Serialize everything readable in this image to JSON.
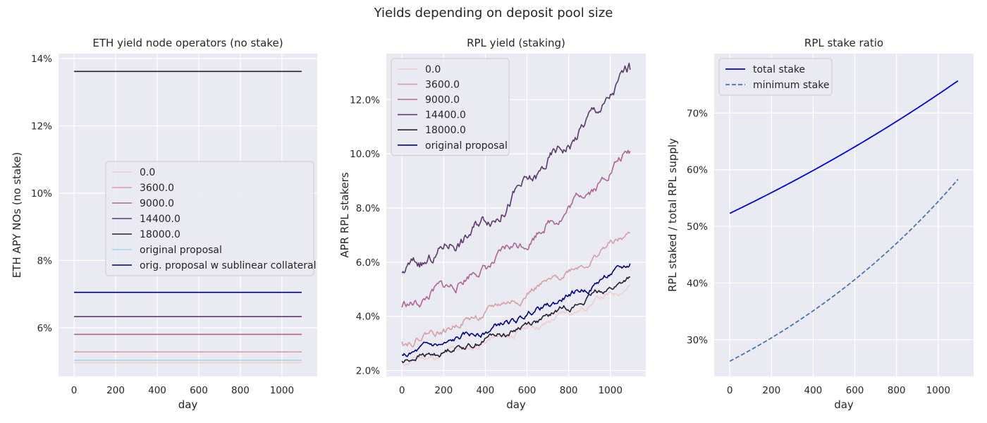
{
  "suptitle": "Yields depending on deposit pool size",
  "chart_data": [
    {
      "type": "line",
      "title": "ETH yield node operators (no stake)",
      "xlabel": "day",
      "ylabel": "ETH APY NOs (no stake)",
      "xlim": [
        -75,
        1170
      ],
      "ylim": [
        4.55,
        14.15
      ],
      "xticks": [
        0,
        200,
        400,
        600,
        800,
        1000
      ],
      "yticks": [
        6,
        8,
        10,
        12,
        14
      ],
      "ytick_labels": [
        "6%",
        "8%",
        "10%",
        "12%",
        "14%"
      ],
      "x_range": [
        0,
        1095
      ],
      "legend_position": "center-right",
      "series": [
        {
          "name": "0.0",
          "color": "#efcfcf",
          "dash": "solid",
          "width": 1.6,
          "values": [
            4.96,
            4.96
          ]
        },
        {
          "name": "3600.0",
          "color": "#d4a1a8",
          "dash": "solid",
          "width": 1.6,
          "values": [
            5.28,
            5.28
          ]
        },
        {
          "name": "9000.0",
          "color": "#ac6796",
          "dash": "solid",
          "width": 1.6,
          "values": [
            5.8,
            5.8
          ]
        },
        {
          "name": "14400.0",
          "color": "#5c3a6e",
          "dash": "solid",
          "width": 1.6,
          "values": [
            6.33,
            6.33
          ]
        },
        {
          "name": "18000.0",
          "color": "#262037",
          "dash": "solid",
          "width": 1.6,
          "values": [
            13.62,
            13.62
          ]
        },
        {
          "name": "original proposal",
          "color": "#a8d6ea",
          "dash": "solid",
          "width": 1.6,
          "values": [
            5.03,
            5.03
          ]
        },
        {
          "name": "orig. proposal w sublinear collateral",
          "color": "#00008b",
          "dash": "solid",
          "width": 1.6,
          "values": [
            7.05,
            7.05
          ]
        }
      ]
    },
    {
      "type": "line",
      "title": "RPL yield (staking)",
      "xlabel": "day",
      "ylabel": "APR RPL stakers",
      "xlim": [
        -75,
        1170
      ],
      "ylim": [
        1.78,
        13.7
      ],
      "xticks": [
        0,
        200,
        400,
        600,
        800,
        1000
      ],
      "yticks": [
        2,
        4,
        6,
        8,
        10,
        12
      ],
      "ytick_labels": [
        "2.0%",
        "4.0%",
        "6.0%",
        "8.0%",
        "10.0%",
        "12.0%"
      ],
      "x_range": [
        0,
        1095
      ],
      "legend_position": "upper-left",
      "series": [
        {
          "name": "0.0",
          "color": "#efcfcf",
          "dash": "solid",
          "width": 1.6,
          "start": 2.28,
          "end": 5.15,
          "noise": 0.05,
          "seed": 11
        },
        {
          "name": "3600.0",
          "color": "#d4a1a8",
          "dash": "solid",
          "width": 1.6,
          "start": 3.07,
          "end": 7.1,
          "noise": 0.06,
          "seed": 22
        },
        {
          "name": "9000.0",
          "color": "#ac6796",
          "dash": "solid",
          "width": 1.6,
          "start": 4.33,
          "end": 10.1,
          "noise": 0.08,
          "seed": 33
        },
        {
          "name": "14400.0",
          "color": "#5c3a6e",
          "dash": "solid",
          "width": 1.6,
          "start": 5.6,
          "end": 13.1,
          "noise": 0.1,
          "seed": 44
        },
        {
          "name": "18000.0",
          "color": "#262037",
          "dash": "solid",
          "width": 1.6,
          "start": 2.35,
          "end": 5.45,
          "noise": 0.05,
          "seed": 55
        },
        {
          "name": "original proposal",
          "color": "#00008b",
          "dash": "solid",
          "width": 1.6,
          "start": 2.58,
          "end": 5.95,
          "noise": 0.05,
          "seed": 66
        }
      ]
    },
    {
      "type": "line",
      "title": "RPL stake ratio",
      "xlabel": "day",
      "ylabel": "RPL staked / total RPL supply",
      "xlim": [
        -75,
        1170
      ],
      "ylim": [
        23.5,
        80.5
      ],
      "xticks": [
        0,
        200,
        400,
        600,
        800,
        1000
      ],
      "yticks": [
        30,
        40,
        50,
        60,
        70
      ],
      "ytick_labels": [
        "30%",
        "40%",
        "50%",
        "60%",
        "70%"
      ],
      "x_range": [
        0,
        1095
      ],
      "legend_position": "upper-left",
      "series": [
        {
          "name": "total stake",
          "color": "#0000dd",
          "dash": "solid",
          "width": 1.8,
          "start": 52.3,
          "end": 75.7,
          "curve": "exp"
        },
        {
          "name": "minimum stake",
          "color": "#4c72b0",
          "dash": "dashed",
          "width": 1.8,
          "start": 26.2,
          "end": 58.3,
          "curve": "exp"
        }
      ]
    }
  ]
}
